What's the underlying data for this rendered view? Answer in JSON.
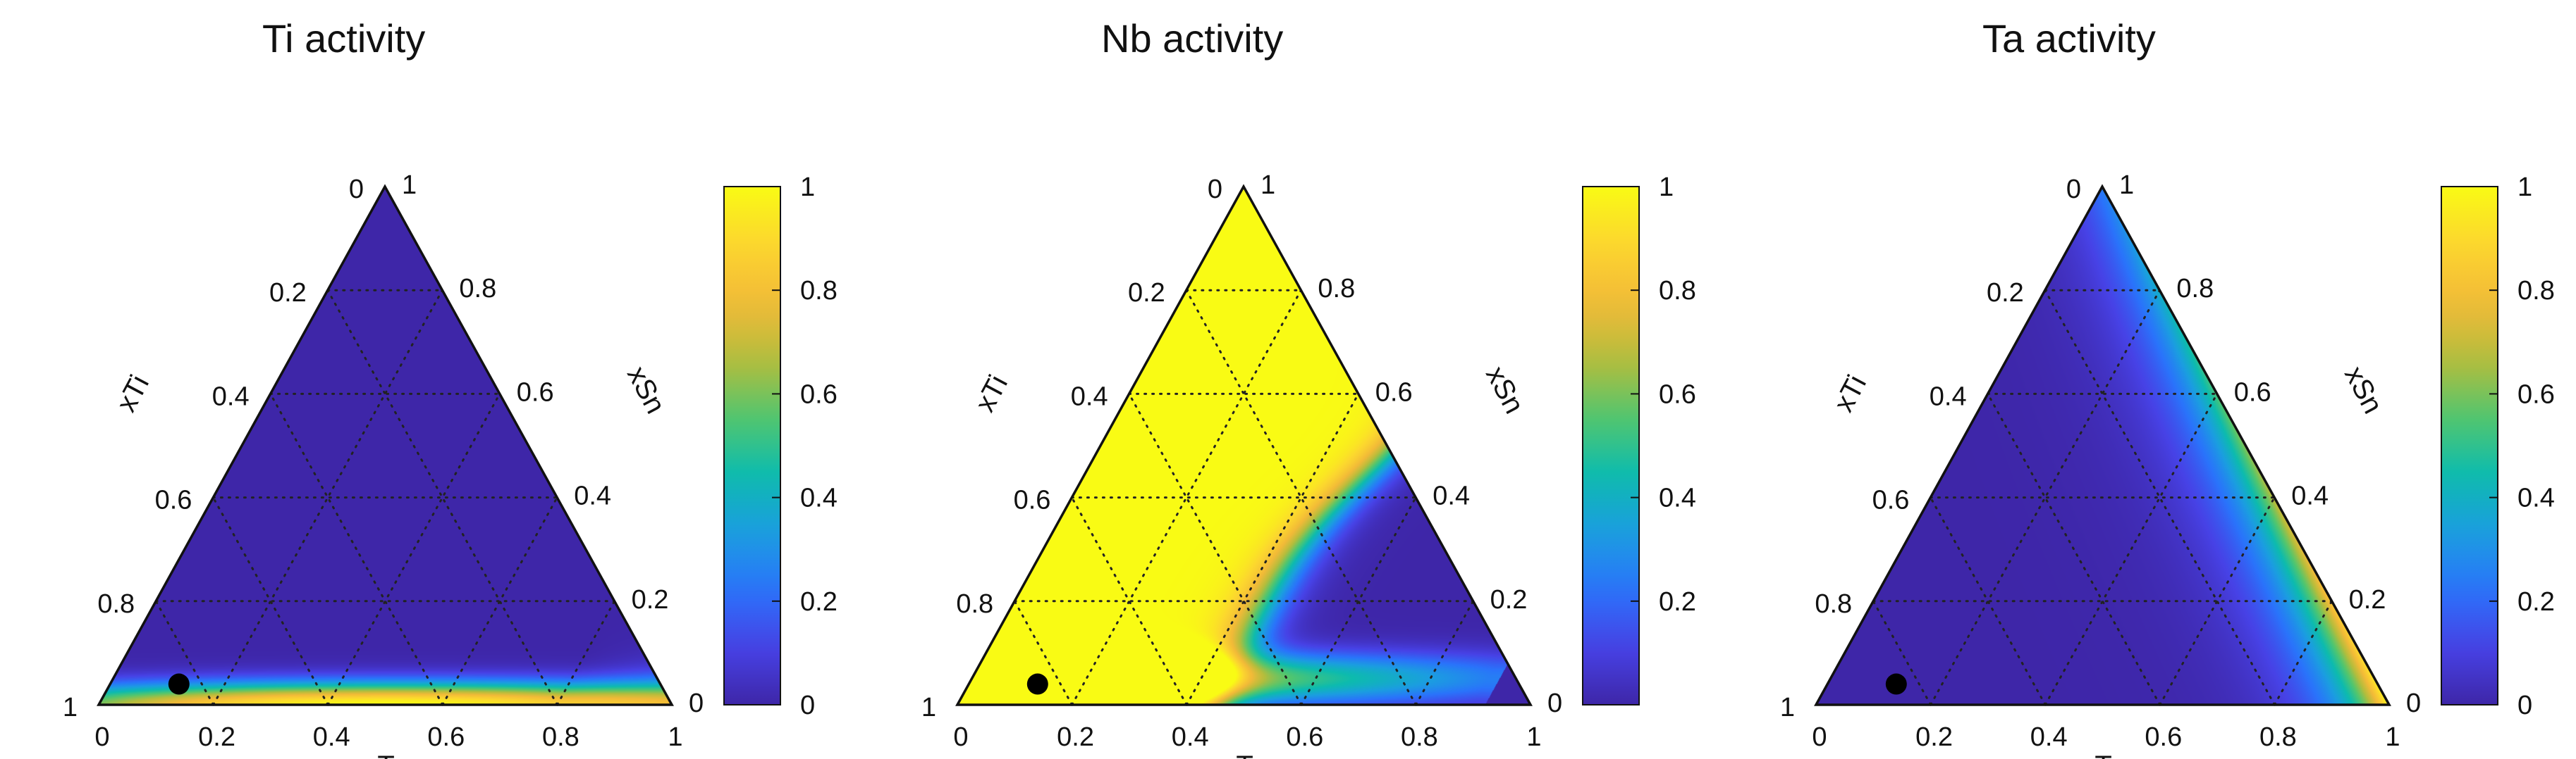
{
  "chart_data": [
    {
      "type": "heatmap",
      "title": "Ti activity",
      "plot": "ternary",
      "axes": {
        "bottom": {
          "label": "xTa",
          "ticks": [
            "0",
            "0.2",
            "0.4",
            "0.6",
            "0.8",
            "1"
          ]
        },
        "left": {
          "label": "xTi",
          "ticks": [
            "1",
            "0.8",
            "0.6",
            "0.4",
            "0.2",
            "0"
          ]
        },
        "right": {
          "label": "xSn",
          "ticks": [
            "0",
            "0.2",
            "0.4",
            "0.6",
            "0.8",
            "1"
          ]
        }
      },
      "colorbar": {
        "range": [
          0,
          1
        ],
        "ticks": [
          "0",
          "0.2",
          "0.4",
          "0.6",
          "0.8",
          "1"
        ],
        "colormap": "parula"
      },
      "grid": true,
      "marker": {
        "xTa": 0.12,
        "xSn": 0.04
      },
      "field": "ti"
    },
    {
      "type": "heatmap",
      "title": "Nb activity",
      "plot": "ternary",
      "axes": {
        "bottom": {
          "label": "xTa",
          "ticks": [
            "0",
            "0.2",
            "0.4",
            "0.6",
            "0.8",
            "1"
          ]
        },
        "left": {
          "label": "xTi",
          "ticks": [
            "1",
            "0.8",
            "0.6",
            "0.4",
            "0.2",
            "0"
          ]
        },
        "right": {
          "label": "xSn",
          "ticks": [
            "0",
            "0.2",
            "0.4",
            "0.6",
            "0.8",
            "1"
          ]
        }
      },
      "colorbar": {
        "range": [
          0,
          1
        ],
        "ticks": [
          "0.2",
          "0.4",
          "0.6",
          "0.8",
          "1"
        ],
        "colormap": "parula"
      },
      "grid": true,
      "marker": {
        "xTa": 0.12,
        "xSn": 0.04
      },
      "field": "nb"
    },
    {
      "type": "heatmap",
      "title": "Ta activity",
      "plot": "ternary",
      "axes": {
        "bottom": {
          "label": "xTa",
          "ticks": [
            "0",
            "0.2",
            "0.4",
            "0.6",
            "0.8",
            "1"
          ]
        },
        "left": {
          "label": "xTi",
          "ticks": [
            "1",
            "0.8",
            "0.6",
            "0.4",
            "0.2",
            "0"
          ]
        },
        "right": {
          "label": "xSn",
          "ticks": [
            "0",
            "0.2",
            "0.4",
            "0.6",
            "0.8",
            "1"
          ]
        }
      },
      "colorbar": {
        "range": [
          0,
          1
        ],
        "ticks": [
          "0",
          "0.2",
          "0.4",
          "0.6",
          "0.8",
          "1"
        ],
        "colormap": "parula"
      },
      "grid": true,
      "marker": {
        "xTa": 0.12,
        "xSn": 0.04
      },
      "field": "ta"
    }
  ],
  "colors": {
    "parula": [
      "#3e26a8",
      "#4742e6",
      "#2a73fb",
      "#1b9ee0",
      "#0dbbae",
      "#52c66e",
      "#b5bd3c",
      "#f2ba38",
      "#fcd62f",
      "#f9fb14"
    ],
    "line": "#111111",
    "grid": "#222222",
    "marker": "#000000"
  }
}
